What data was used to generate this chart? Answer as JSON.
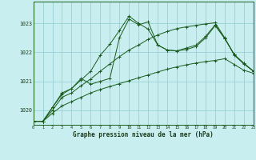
{
  "title": "Graphe pression niveau de la mer (hPa)",
  "bg": "#c8eef0",
  "grid_color": "#8ccdd0",
  "lc": "#1a5c1a",
  "xlim": [
    0,
    23
  ],
  "ylim": [
    1019.5,
    1023.75
  ],
  "yticks": [
    1020,
    1021,
    1022,
    1023
  ],
  "xticks": [
    0,
    1,
    2,
    3,
    4,
    5,
    6,
    7,
    8,
    9,
    10,
    11,
    12,
    13,
    14,
    15,
    16,
    17,
    18,
    19,
    20,
    21,
    22,
    23
  ],
  "line1_x": [
    0,
    1,
    2,
    3,
    4,
    5,
    6,
    7,
    8,
    9,
    10,
    11,
    12,
    13,
    14,
    15,
    16,
    17,
    18,
    19,
    20,
    21,
    22,
    23
  ],
  "line1_y": [
    1019.62,
    1019.62,
    1019.9,
    1020.15,
    1020.3,
    1020.45,
    1020.6,
    1020.72,
    1020.82,
    1020.92,
    1021.02,
    1021.12,
    1021.22,
    1021.32,
    1021.42,
    1021.5,
    1021.57,
    1021.63,
    1021.68,
    1021.72,
    1021.78,
    1021.58,
    1021.38,
    1021.28
  ],
  "line2_x": [
    0,
    1,
    2,
    3,
    4,
    5,
    6,
    7,
    8,
    9,
    10,
    11,
    12,
    13,
    14,
    15,
    16,
    17,
    18,
    19,
    20,
    21,
    22,
    23
  ],
  "line2_y": [
    1019.62,
    1019.62,
    1020.0,
    1020.45,
    1020.6,
    1020.85,
    1021.08,
    1021.35,
    1021.6,
    1021.85,
    1022.08,
    1022.25,
    1022.45,
    1022.6,
    1022.72,
    1022.82,
    1022.88,
    1022.93,
    1022.98,
    1023.02,
    1022.5,
    1021.9,
    1021.6,
    1021.35
  ],
  "line3_x": [
    0,
    1,
    2,
    3,
    4,
    5,
    6,
    7,
    8,
    9,
    10,
    11,
    12,
    13,
    14,
    15,
    16,
    17,
    18,
    19,
    20,
    21,
    22,
    23
  ],
  "line3_y": [
    1019.62,
    1019.62,
    1020.1,
    1020.55,
    1020.75,
    1021.05,
    1021.35,
    1021.9,
    1022.28,
    1022.75,
    1023.25,
    1023.0,
    1022.8,
    1022.25,
    1022.08,
    1022.05,
    1022.1,
    1022.2,
    1022.5,
    1022.92,
    1022.48,
    1021.92,
    1021.62,
    1021.35
  ],
  "line4_x": [
    0,
    1,
    2,
    3,
    4,
    5,
    6,
    7,
    8,
    9,
    10,
    11,
    12,
    13,
    14,
    15,
    16,
    17,
    18,
    19,
    20,
    21,
    22,
    23
  ],
  "line4_y": [
    1019.62,
    1019.62,
    1020.1,
    1020.6,
    1020.75,
    1021.1,
    1020.9,
    1021.0,
    1021.1,
    1022.5,
    1023.15,
    1022.95,
    1023.05,
    1022.25,
    1022.08,
    1022.05,
    1022.15,
    1022.25,
    1022.55,
    1022.95,
    1022.48,
    1021.92,
    1021.62,
    1021.35
  ]
}
